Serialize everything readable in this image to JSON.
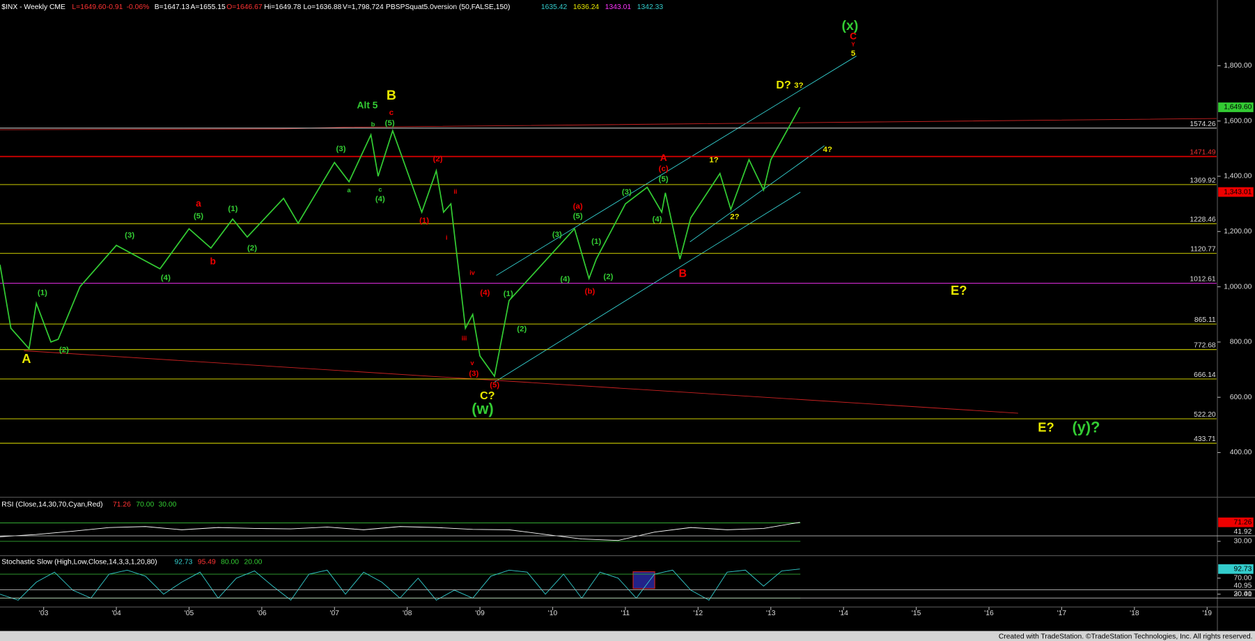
{
  "chart_data": [
    {
      "type": "line",
      "color": "#33cc33",
      "header": [
        {
          "text": "$INX - Weekly CME",
          "color": "#ffffff"
        },
        {
          "text": "L=1649.60",
          "color": "#ff3333"
        },
        {
          "text": "-0.91",
          "color": "#ff3333"
        },
        {
          "text": "-0.06%",
          "color": "#ff3333"
        },
        {
          "text": "B=1647.13",
          "color": "#ffffff"
        },
        {
          "text": "A=1655.15",
          "color": "#ffffff"
        },
        {
          "text": "O=1646.67",
          "color": "#ff3333"
        },
        {
          "text": "Hi=1649.78",
          "color": "#ffffff"
        },
        {
          "text": "Lo=1636.88",
          "color": "#ffffff"
        },
        {
          "text": "V=1,798,724",
          "color": "#ffffff"
        },
        {
          "text": "PBSPSquat5.0version (50,FALSE,150)",
          "color": "#ffffff"
        },
        {
          "text": "1635.42",
          "color": "#33cccc"
        },
        {
          "text": "1636.24",
          "color": "#e8e800"
        },
        {
          "text": "1343.01",
          "color": "#ff33ff"
        },
        {
          "text": "1342.33",
          "color": "#33cccc"
        }
      ],
      "x": [
        2002.4,
        2002.55,
        2002.8,
        2002.9,
        2003.1,
        2003.2,
        2003.5,
        2004.0,
        2004.6,
        2005.0,
        2005.3,
        2005.6,
        2005.8,
        2006.3,
        2006.5,
        2007.0,
        2007.2,
        2007.5,
        2007.6,
        2007.8,
        2008.2,
        2008.4,
        2008.5,
        2008.6,
        2008.8,
        2008.9,
        2009.0,
        2009.2,
        2009.4,
        2010.3,
        2010.5,
        2010.6,
        2011.0,
        2011.3,
        2011.5,
        2011.55,
        2011.75,
        2011.9,
        2012.3,
        2012.45,
        2012.7,
        2012.9,
        2013.0,
        2013.4
      ],
      "values": [
        1080,
        850,
        776,
        940,
        800,
        810,
        1000,
        1150,
        1065,
        1210,
        1140,
        1245,
        1180,
        1320,
        1230,
        1450,
        1380,
        1550,
        1400,
        1565,
        1270,
        1420,
        1270,
        1300,
        850,
        900,
        750,
        676,
        950,
        1210,
        1030,
        1100,
        1300,
        1360,
        1270,
        1340,
        1100,
        1250,
        1410,
        1280,
        1460,
        1350,
        1460,
        1650
      ],
      "xlim": [
        2002.4,
        2019.13
      ],
      "xticks": [
        {
          "value": 2003,
          "label": "'03"
        },
        {
          "value": 2004,
          "label": "'04"
        },
        {
          "value": 2005,
          "label": "'05"
        },
        {
          "value": 2006,
          "label": "'06"
        },
        {
          "value": 2007,
          "label": "'07"
        },
        {
          "value": 2008,
          "label": "'08"
        },
        {
          "value": 2009,
          "label": "'09"
        },
        {
          "value": 2010,
          "label": "'10"
        },
        {
          "value": 2011,
          "label": "'11"
        },
        {
          "value": 2012,
          "label": "'12"
        },
        {
          "value": 2013,
          "label": "'13"
        },
        {
          "value": 2014,
          "label": "'14"
        },
        {
          "value": 2015,
          "label": "'15"
        },
        {
          "value": 2016,
          "label": "'16"
        },
        {
          "value": 2017,
          "label": "'17"
        },
        {
          "value": 2018,
          "label": "'18"
        },
        {
          "value": 2019,
          "label": "'19"
        }
      ],
      "ylim": [
        241,
        2038
      ],
      "yticks": [
        {
          "value": 400,
          "label": "400.00"
        },
        {
          "value": 600,
          "label": "600.00"
        },
        {
          "value": 800,
          "label": "800.00"
        },
        {
          "value": 1000,
          "label": "1,000.00"
        },
        {
          "value": 1200,
          "label": "1,200.00"
        },
        {
          "value": 1400,
          "label": "1,400.00"
        },
        {
          "value": 1600,
          "label": "1,600.00"
        },
        {
          "value": 1800,
          "label": "1,800.00"
        }
      ],
      "levels": [
        {
          "value": 1574.26,
          "color": "#dddddd"
        },
        {
          "value": 1471.49,
          "color": "#dd0000"
        },
        {
          "value": 1369.92,
          "color": "#e8e800"
        },
        {
          "value": 1228.46,
          "color": "#e8e800"
        },
        {
          "value": 1120.77,
          "color": "#e8e800"
        },
        {
          "value": 1012.61,
          "color": "#ff33ff"
        },
        {
          "value": 865.11,
          "color": "#e8e800"
        },
        {
          "value": 772.68,
          "color": "#e8e800"
        },
        {
          "value": 666.14,
          "color": "#e8e800"
        },
        {
          "value": 522.2,
          "label": "522.20",
          "color": "#e8e800"
        },
        {
          "value": 433.71,
          "color": "#e8e800"
        }
      ],
      "markers": [
        {
          "value": 1649.6,
          "label": "1,649.60",
          "color": "#33cc33"
        },
        {
          "value": 1343.01,
          "label": "1,343.01",
          "color": "#ee0000"
        }
      ],
      "annotations": [
        {
          "text": "(x)",
          "color": "#33cc33"
        },
        {
          "text": "C",
          "color": "#ee0000"
        },
        {
          "text": "Y",
          "color": "#ee0000"
        },
        {
          "text": "5",
          "color": "#e8e800"
        },
        {
          "text": "D?",
          "color": "#e8e800"
        },
        {
          "text": "3?",
          "color": "#e8e800"
        },
        {
          "text": "B",
          "color": "#e8e800"
        },
        {
          "text": "Alt 5",
          "color": "#33cc33"
        },
        {
          "text": "c",
          "color": "#ee0000"
        },
        {
          "text": "b",
          "color": "#33cc33"
        },
        {
          "text": "(5)",
          "color": "#33cc33"
        },
        {
          "text": "(3)",
          "color": "#33cc33"
        },
        {
          "text": "a",
          "color": "#33cc33"
        },
        {
          "text": "c",
          "color": "#33cc33"
        },
        {
          "text": "(4)",
          "color": "#33cc33"
        },
        {
          "text": "(2)",
          "color": "#ee0000"
        },
        {
          "text": "ii",
          "color": "#ee0000"
        },
        {
          "text": "(1)",
          "color": "#ee0000"
        },
        {
          "text": "i",
          "color": "#ee0000"
        },
        {
          "text": "iv",
          "color": "#ee0000"
        },
        {
          "text": "(4)",
          "color": "#ee0000"
        },
        {
          "text": "iii",
          "color": "#ee0000"
        },
        {
          "text": "v",
          "color": "#ee0000"
        },
        {
          "text": "(3)",
          "color": "#ee0000"
        },
        {
          "text": "(5)",
          "color": "#ee0000"
        },
        {
          "text": "C?",
          "color": "#e8e800"
        },
        {
          "text": "(w)",
          "color": "#33cc33"
        },
        {
          "text": "(1)",
          "color": "#33cc33"
        },
        {
          "text": "(2)",
          "color": "#33cc33"
        },
        {
          "text": "(3)",
          "color": "#33cc33"
        },
        {
          "text": "(a)",
          "color": "#ee0000"
        },
        {
          "text": "(5)",
          "color": "#33cc33"
        },
        {
          "text": "(4)",
          "color": "#33cc33"
        },
        {
          "text": "(b)",
          "color": "#ee0000"
        },
        {
          "text": "(1)",
          "color": "#33cc33"
        },
        {
          "text": "(2)",
          "color": "#33cc33"
        },
        {
          "text": "(3)",
          "color": "#33cc33"
        },
        {
          "text": "(4)",
          "color": "#33cc33"
        },
        {
          "text": "A",
          "color": "#ee0000"
        },
        {
          "text": "(c)",
          "color": "#ee0000"
        },
        {
          "text": "(5)",
          "color": "#33cc33"
        },
        {
          "text": "B",
          "color": "#ee0000"
        },
        {
          "text": "1?",
          "color": "#e8e800"
        },
        {
          "text": "2?",
          "color": "#e8e800"
        },
        {
          "text": "4?",
          "color": "#e8e800"
        },
        {
          "text": "A",
          "color": "#e8e800"
        },
        {
          "text": "(1)",
          "color": "#33cc33"
        },
        {
          "text": "(2)",
          "color": "#33cc33"
        },
        {
          "text": "(3)",
          "color": "#33cc33"
        },
        {
          "text": "(4)",
          "color": "#33cc33"
        },
        {
          "text": "a",
          "color": "#ee0000"
        },
        {
          "text": "(5)",
          "color": "#33cc33"
        },
        {
          "text": "b",
          "color": "#ee0000"
        },
        {
          "text": "(1)",
          "color": "#33cc33"
        },
        {
          "text": "(2)",
          "color": "#33cc33"
        },
        {
          "text": "E?",
          "color": "#e8e800"
        },
        {
          "text": "E?",
          "color": "#e8e800"
        },
        {
          "text": "(y)?",
          "color": "#33cc33"
        }
      ]
    },
    {
      "type": "line",
      "color": "#ffffff",
      "header": [
        {
          "text": "RSI (Close,14,30,70,Cyan,Red)",
          "color": "#ffffff"
        },
        {
          "text": "71.26",
          "color": "#ff3333"
        },
        {
          "text": "70.00",
          "color": "#33cc33"
        },
        {
          "text": "30.00",
          "color": "#33cc33"
        }
      ],
      "x": [
        2002.4,
        2002.9,
        2003.4,
        2003.9,
        2004.4,
        2004.9,
        2005.4,
        2005.9,
        2006.4,
        2006.9,
        2007.4,
        2007.9,
        2008.4,
        2008.9,
        2009.4,
        2009.9,
        2010.4,
        2010.9,
        2011.4,
        2011.9,
        2012.4,
        2012.9,
        2013.4
      ],
      "values": [
        40,
        45,
        52,
        60,
        62,
        55,
        60,
        58,
        57,
        61,
        55,
        62,
        60,
        56,
        55,
        45,
        35,
        32,
        50,
        60,
        55,
        58,
        71.26
      ],
      "ylim": [
        5.7,
        118.7
      ],
      "yticks": [
        {
          "value": 30,
          "label": "30.00"
        }
      ],
      "bands": [
        {
          "value": 70,
          "color": "#33aa33"
        },
        {
          "value": 30,
          "color": "#33aa33"
        }
      ],
      "markers": [
        {
          "value": 71.26,
          "label": "71.26",
          "color": "#ee0000"
        },
        {
          "value": 41.92,
          "label": "41.92",
          "color": "#dddddd"
        }
      ]
    },
    {
      "type": "line",
      "color": "#33cccc",
      "header": [
        {
          "text": "Stochastic Slow (High,Low,Close,14,3,3,1,20,80)",
          "color": "#ffffff"
        },
        {
          "text": "92.73",
          "color": "#33cccc"
        },
        {
          "text": "95.49",
          "color": "#ff3333"
        },
        {
          "text": "80.00",
          "color": "#33cc33"
        },
        {
          "text": "20.00",
          "color": "#33cc33"
        }
      ],
      "x": [
        2002.4,
        2002.65,
        2002.9,
        2003.15,
        2003.4,
        2003.65,
        2003.9,
        2004.15,
        2004.4,
        2004.65,
        2004.9,
        2005.15,
        2005.4,
        2005.65,
        2005.9,
        2006.15,
        2006.4,
        2006.65,
        2006.9,
        2007.15,
        2007.4,
        2007.65,
        2007.9,
        2008.15,
        2008.4,
        2008.65,
        2008.9,
        2009.15,
        2009.4,
        2009.65,
        2009.9,
        2010.15,
        2010.4,
        2010.65,
        2010.9,
        2011.15,
        2011.4,
        2011.65,
        2011.9,
        2012.15,
        2012.4,
        2012.65,
        2012.9,
        2013.15,
        2013.4
      ],
      "values": [
        30,
        15,
        60,
        85,
        40,
        20,
        80,
        90,
        75,
        30,
        60,
        85,
        20,
        70,
        88,
        50,
        15,
        80,
        90,
        30,
        85,
        60,
        20,
        70,
        15,
        40,
        20,
        75,
        90,
        85,
        30,
        80,
        20,
        85,
        70,
        20,
        80,
        90,
        40,
        15,
        85,
        90,
        50,
        88,
        92.73
      ],
      "ylim": [
        -2,
        120
      ],
      "yticks": [
        {
          "value": 70,
          "label": "70.00"
        },
        {
          "value": 30,
          "label": "30.00"
        }
      ],
      "bands": [
        {
          "value": 80,
          "color": "#33aa33"
        },
        {
          "value": 20,
          "color": "#33aa33"
        }
      ],
      "markers": [
        {
          "value": 92.73,
          "label": "92.73",
          "color": "#33cccc"
        },
        {
          "value": 40.95,
          "label": "40.95",
          "color": "#dddddd"
        },
        {
          "value": 20.41,
          "label": "20.41",
          "color": "#dddddd"
        }
      ]
    }
  ],
  "footer": "Created with TradeStation. ©TradeStation Technologies, Inc. All rights reserved."
}
